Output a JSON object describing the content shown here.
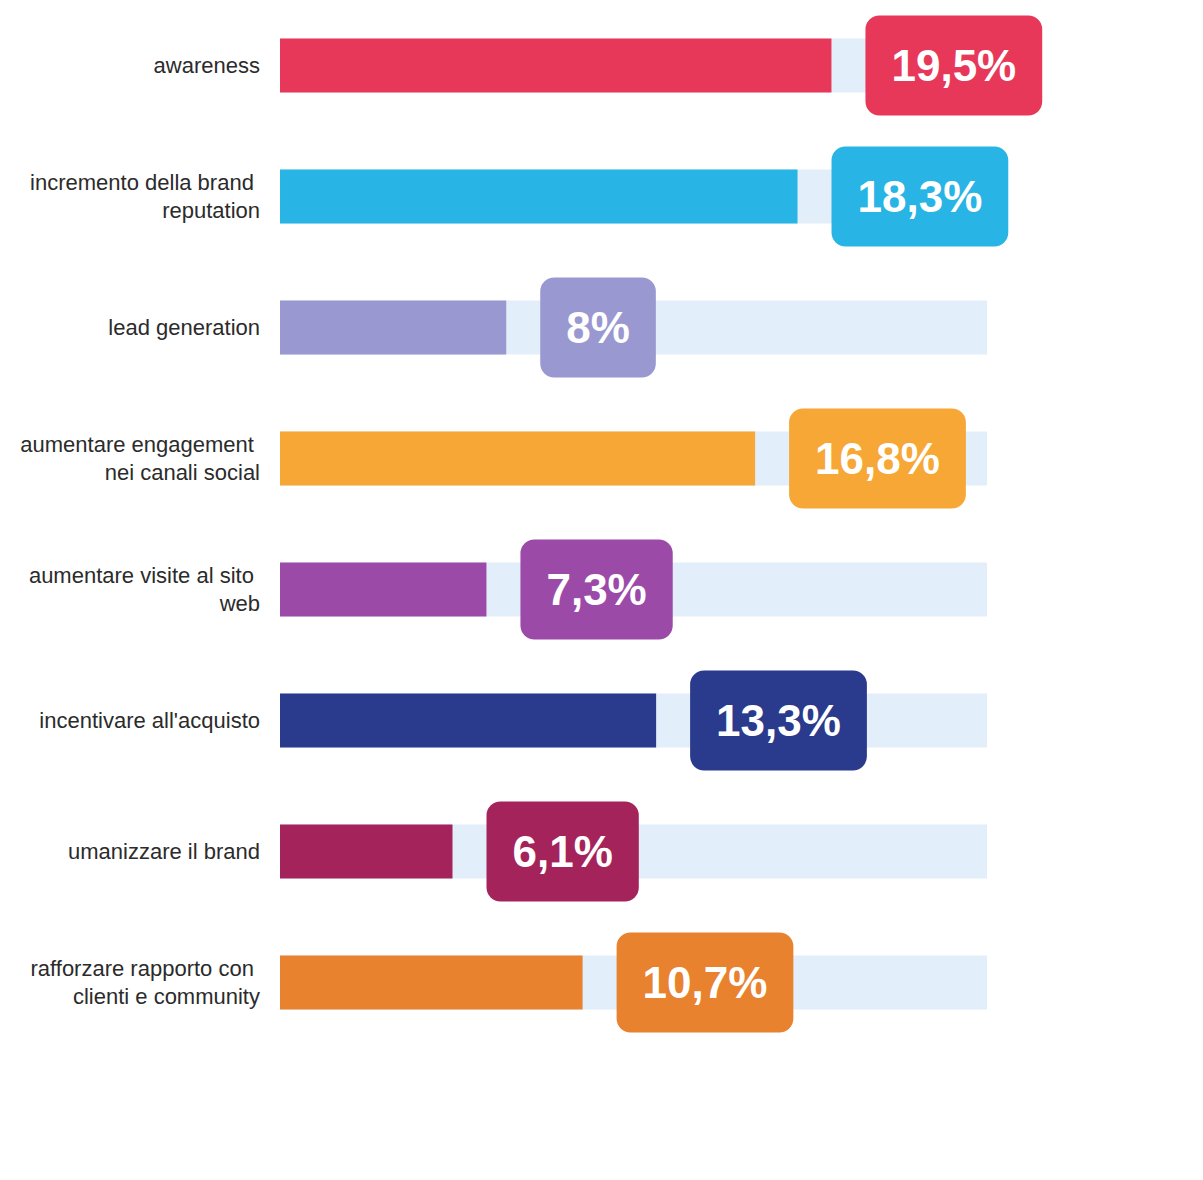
{
  "chart_data": {
    "type": "bar",
    "orientation": "horizontal",
    "categories": [
      "awareness",
      "incremento della brand reputation",
      "lead generation",
      "aumentare engagement nei canali social",
      "aumentare visite al sito web",
      "incentivare all'acquisto",
      "umanizzare il brand",
      "rafforzare rapporto con clienti e community"
    ],
    "values": [
      19.5,
      18.3,
      8,
      16.8,
      7.3,
      13.3,
      6.1,
      10.7
    ],
    "value_labels": [
      "19,5%",
      "18,3%",
      "8%",
      "16,8%",
      "7,3%",
      "13,3%",
      "6,1%",
      "10,7%"
    ],
    "colors": [
      "#e8385a",
      "#28b4e4",
      "#9a98d0",
      "#f6a735",
      "#9b4aa8",
      "#2a3a8c",
      "#a4235a",
      "#e8822e"
    ],
    "xlim": [
      0,
      25
    ],
    "data_labels": true,
    "tick_labels": "y",
    "grid": false
  }
}
